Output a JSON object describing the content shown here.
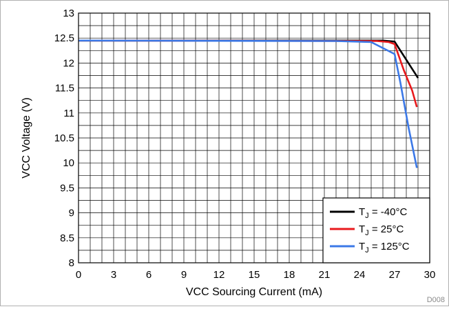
{
  "chart_data": {
    "type": "line",
    "title": "",
    "xlabel": "VCC Sourcing Current (mA)",
    "ylabel": "VCC Voltage (V)",
    "figure_id": "D008",
    "xlim": [
      0,
      30
    ],
    "ylim": [
      8,
      13
    ],
    "x_ticks": [
      0,
      3,
      6,
      9,
      12,
      15,
      18,
      21,
      24,
      27,
      30
    ],
    "y_ticks": [
      8,
      8.5,
      9,
      9.5,
      10,
      10.5,
      11,
      11.5,
      12,
      12.5,
      13
    ],
    "y_tick_labels": [
      "8",
      "8.5",
      "9",
      "9.5",
      "10",
      "10.5",
      "11",
      "11.5",
      "12",
      "12.5",
      "13"
    ],
    "grid": true,
    "legend_position": "bottom-right",
    "series": [
      {
        "name": "T_J = -40°C",
        "label_main": "T",
        "label_sub": "J",
        "label_rest": " = -40°C",
        "color": "#000000",
        "points": [
          [
            0,
            12.45
          ],
          [
            26,
            12.45
          ],
          [
            27,
            12.43
          ],
          [
            29,
            11.7
          ]
        ]
      },
      {
        "name": "T_J = 25°C",
        "label_main": "T",
        "label_sub": "J",
        "label_rest": " = 25°C",
        "color": "#e8191c",
        "points": [
          [
            0,
            12.45
          ],
          [
            25.5,
            12.44
          ],
          [
            26.5,
            12.42
          ],
          [
            27,
            12.38
          ],
          [
            27.8,
            11.85
          ],
          [
            28.5,
            11.45
          ],
          [
            28.9,
            11.12
          ]
        ]
      },
      {
        "name": "T_J = 125°C",
        "label_main": "T",
        "label_sub": "J",
        "label_rest": " = 125°C",
        "color": "#3b78e7",
        "points": [
          [
            0,
            12.45
          ],
          [
            22,
            12.44
          ],
          [
            25,
            12.42
          ],
          [
            27,
            12.18
          ],
          [
            27.5,
            11.6
          ],
          [
            28.2,
            10.7
          ],
          [
            28.9,
            9.9
          ]
        ]
      }
    ]
  }
}
